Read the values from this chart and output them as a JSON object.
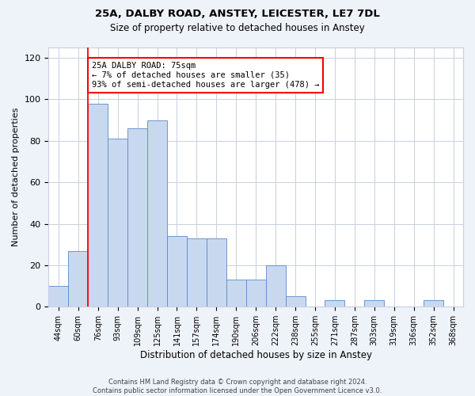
{
  "title1": "25A, DALBY ROAD, ANSTEY, LEICESTER, LE7 7DL",
  "title2": "Size of property relative to detached houses in Anstey",
  "xlabel": "Distribution of detached houses by size in Anstey",
  "ylabel": "Number of detached properties",
  "categories": [
    "44sqm",
    "60sqm",
    "76sqm",
    "93sqm",
    "109sqm",
    "125sqm",
    "141sqm",
    "157sqm",
    "174sqm",
    "190sqm",
    "206sqm",
    "222sqm",
    "238sqm",
    "255sqm",
    "271sqm",
    "287sqm",
    "303sqm",
    "319sqm",
    "336sqm",
    "352sqm",
    "368sqm"
  ],
  "values": [
    10,
    27,
    98,
    81,
    86,
    90,
    34,
    33,
    33,
    13,
    13,
    20,
    5,
    0,
    3,
    0,
    3,
    0,
    0,
    3,
    0
  ],
  "bar_color": "#c8d9ef",
  "bar_edge_color": "#5a8ac6",
  "annotation_text": "25A DALBY ROAD: 75sqm\n← 7% of detached houses are smaller (35)\n93% of semi-detached houses are larger (478) →",
  "annotation_box_color": "white",
  "annotation_box_edge_color": "red",
  "vline_color": "red",
  "ylim": [
    0,
    125
  ],
  "yticks": [
    0,
    20,
    40,
    60,
    80,
    100,
    120
  ],
  "footnote": "Contains HM Land Registry data © Crown copyright and database right 2024.\nContains public sector information licensed under the Open Government Licence v3.0.",
  "background_color": "#eef2f9",
  "plot_bg_color": "white",
  "grid_color": "#c8cfe0"
}
